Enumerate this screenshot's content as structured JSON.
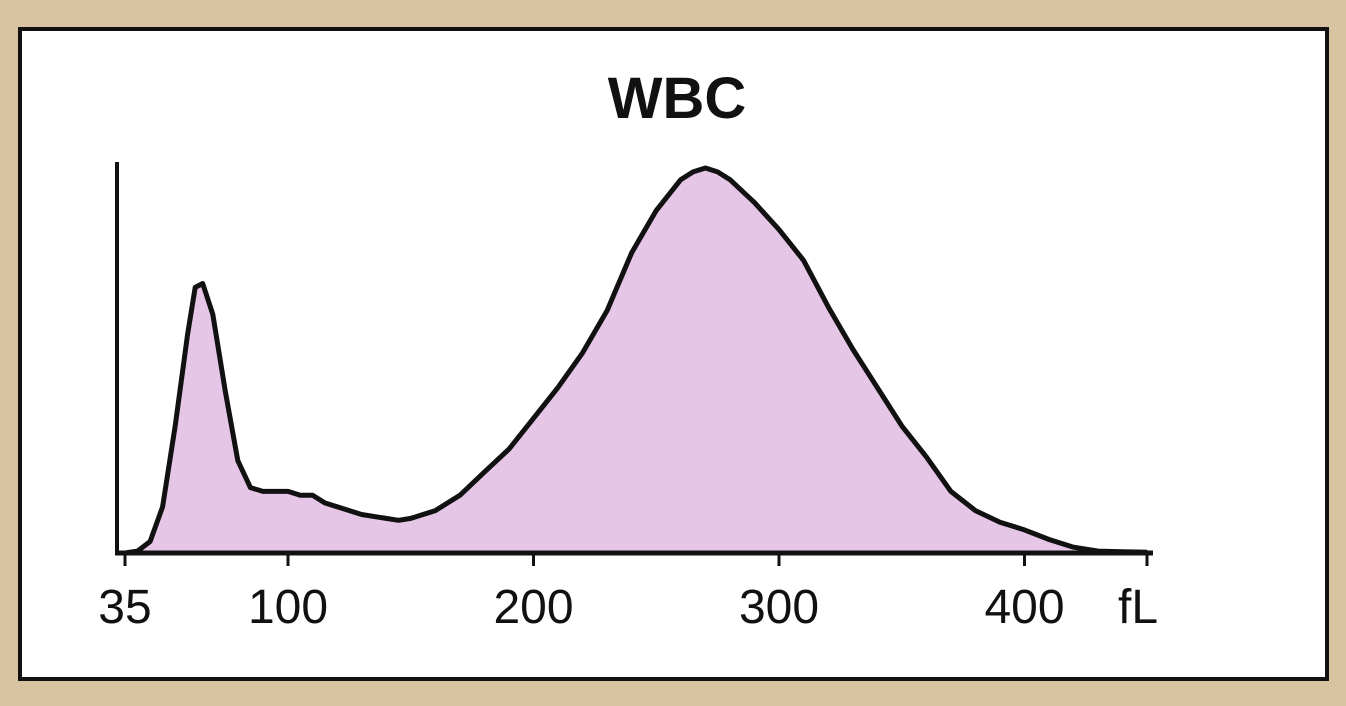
{
  "chart_data": {
    "type": "area",
    "title": "WBC",
    "unit_label": "fL",
    "tick_labels": [
      "35",
      "100",
      "200",
      "300",
      "400"
    ],
    "x_ticks": [
      35,
      100,
      200,
      300,
      400
    ],
    "xlim": [
      35,
      450
    ],
    "ylim": [
      0,
      1
    ],
    "grid": false,
    "fill_color": "#e6c6e6",
    "line_color": "#111111",
    "series": [
      {
        "x": [
          35,
          40,
          45,
          50,
          55,
          60,
          63,
          66,
          70,
          75,
          80,
          85,
          90,
          95,
          100,
          105,
          110,
          115,
          120,
          130,
          140,
          145,
          150,
          160,
          170,
          180,
          190,
          200,
          210,
          220,
          230,
          240,
          250,
          260,
          265,
          270,
          275,
          280,
          290,
          300,
          310,
          320,
          330,
          340,
          350,
          360,
          370,
          380,
          390,
          400,
          410,
          420,
          430,
          440,
          450
        ],
        "y": [
          0,
          0.005,
          0.03,
          0.12,
          0.33,
          0.57,
          0.69,
          0.7,
          0.62,
          0.42,
          0.24,
          0.17,
          0.16,
          0.16,
          0.16,
          0.15,
          0.15,
          0.13,
          0.12,
          0.1,
          0.09,
          0.085,
          0.09,
          0.11,
          0.15,
          0.21,
          0.27,
          0.35,
          0.43,
          0.52,
          0.63,
          0.78,
          0.89,
          0.97,
          0.99,
          1.0,
          0.99,
          0.97,
          0.91,
          0.84,
          0.76,
          0.64,
          0.53,
          0.43,
          0.33,
          0.25,
          0.16,
          0.11,
          0.08,
          0.06,
          0.035,
          0.015,
          0.005,
          0.003,
          0.002
        ]
      }
    ]
  }
}
